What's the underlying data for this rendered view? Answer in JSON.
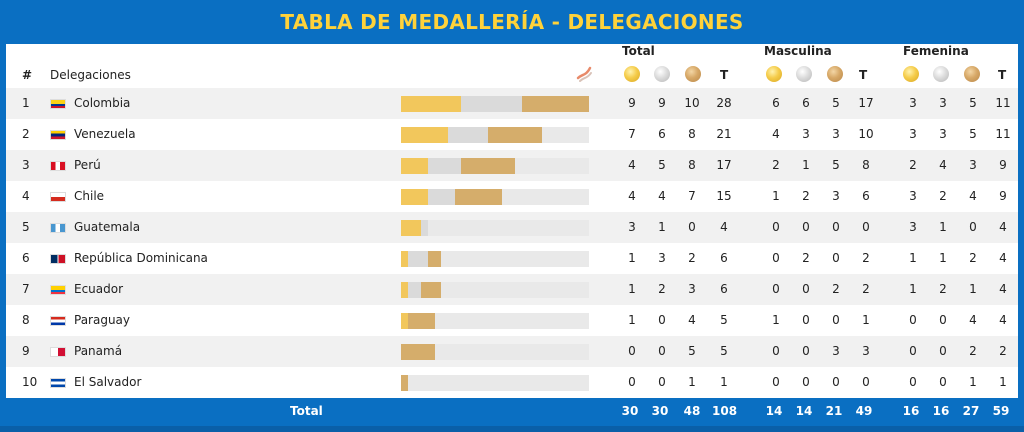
{
  "title": "TABLA DE MEDALLERÍA - DELEGACIONES",
  "headers": {
    "rank": "#",
    "delegations": "Delegaciones",
    "total": "Total",
    "men": "Masculina",
    "women": "Femenina",
    "t": "T"
  },
  "colors": {
    "gold": "#f2c75c",
    "silver": "#dadada",
    "bronze": "#d5ad6b",
    "blue": "#0a6fc2",
    "title": "#ffd23a"
  },
  "rows": [
    {
      "rank": "1",
      "name": "Colombia",
      "flag": "colombia-flag",
      "total": [
        "9",
        "9",
        "10",
        "28"
      ],
      "men": [
        "6",
        "6",
        "5",
        "17"
      ],
      "women": [
        "3",
        "3",
        "5",
        "11"
      ]
    },
    {
      "rank": "2",
      "name": "Venezuela",
      "flag": "venezuela-flag",
      "total": [
        "7",
        "6",
        "8",
        "21"
      ],
      "men": [
        "4",
        "3",
        "3",
        "10"
      ],
      "women": [
        "3",
        "3",
        "5",
        "11"
      ]
    },
    {
      "rank": "3",
      "name": "Perú",
      "flag": "peru-flag",
      "total": [
        "4",
        "5",
        "8",
        "17"
      ],
      "men": [
        "2",
        "1",
        "5",
        "8"
      ],
      "women": [
        "2",
        "4",
        "3",
        "9"
      ]
    },
    {
      "rank": "4",
      "name": "Chile",
      "flag": "chile-flag",
      "total": [
        "4",
        "4",
        "7",
        "15"
      ],
      "men": [
        "1",
        "2",
        "3",
        "6"
      ],
      "women": [
        "3",
        "2",
        "4",
        "9"
      ]
    },
    {
      "rank": "5",
      "name": "Guatemala",
      "flag": "guatemala-flag",
      "total": [
        "3",
        "1",
        "0",
        "4"
      ],
      "men": [
        "0",
        "0",
        "0",
        "0"
      ],
      "women": [
        "3",
        "1",
        "0",
        "4"
      ]
    },
    {
      "rank": "6",
      "name": "República Dominicana",
      "flag": "dominican-republic-flag",
      "total": [
        "1",
        "3",
        "2",
        "6"
      ],
      "men": [
        "0",
        "2",
        "0",
        "2"
      ],
      "women": [
        "1",
        "1",
        "2",
        "4"
      ]
    },
    {
      "rank": "7",
      "name": "Ecuador",
      "flag": "ecuador-flag",
      "total": [
        "1",
        "2",
        "3",
        "6"
      ],
      "men": [
        "0",
        "0",
        "2",
        "2"
      ],
      "women": [
        "1",
        "2",
        "1",
        "4"
      ]
    },
    {
      "rank": "8",
      "name": "Paraguay",
      "flag": "paraguay-flag",
      "total": [
        "1",
        "0",
        "4",
        "5"
      ],
      "men": [
        "1",
        "0",
        "0",
        "1"
      ],
      "women": [
        "0",
        "0",
        "4",
        "4"
      ]
    },
    {
      "rank": "9",
      "name": "Panamá",
      "flag": "panama-flag",
      "total": [
        "0",
        "0",
        "5",
        "5"
      ],
      "men": [
        "0",
        "0",
        "3",
        "3"
      ],
      "women": [
        "0",
        "0",
        "2",
        "2"
      ]
    },
    {
      "rank": "10",
      "name": "El Salvador",
      "flag": "el-salvador-flag",
      "total": [
        "0",
        "0",
        "1",
        "1"
      ],
      "men": [
        "0",
        "0",
        "0",
        "0"
      ],
      "women": [
        "0",
        "0",
        "1",
        "1"
      ]
    }
  ],
  "bar_max": 28,
  "footer": {
    "label": "Total",
    "total": [
      "30",
      "30",
      "48",
      "108"
    ],
    "men": [
      "14",
      "14",
      "21",
      "49"
    ],
    "women": [
      "16",
      "16",
      "27",
      "59"
    ]
  }
}
